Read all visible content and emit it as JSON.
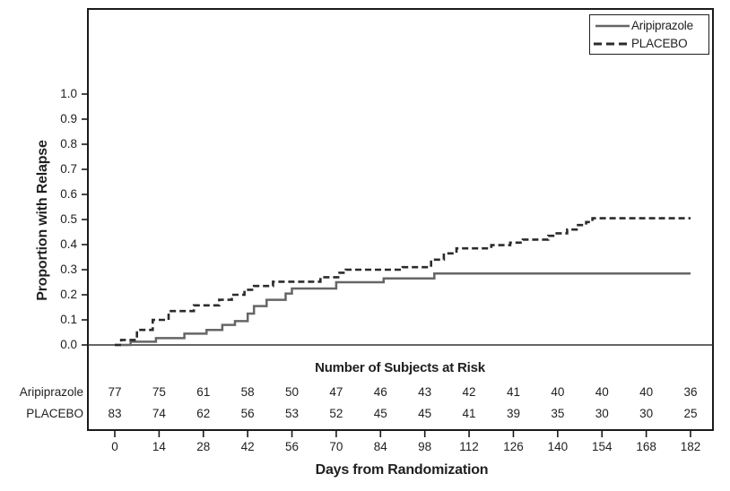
{
  "chart_data": {
    "type": "line",
    "subtype": "kaplan-meier-step",
    "title": "",
    "xlabel": "Days from Randomization",
    "ylabel": "Proportion with Relapse",
    "xlim": [
      0,
      182
    ],
    "ylim": [
      0.0,
      1.0
    ],
    "x_ticks": [
      "0",
      "14",
      "28",
      "42",
      "56",
      "70",
      "84",
      "98",
      "112",
      "126",
      "140",
      "154",
      "168",
      "182"
    ],
    "y_ticks": [
      "0.0",
      "0.1",
      "0.2",
      "0.3",
      "0.4",
      "0.5",
      "0.6",
      "0.7",
      "0.8",
      "0.9",
      "1.0"
    ],
    "grid": false,
    "legend_position": "top-right",
    "series": [
      {
        "name": "Aripiprazole",
        "style": "solid",
        "color": "#666666",
        "points": [
          [
            0,
            0
          ],
          [
            5,
            0.013
          ],
          [
            13,
            0.027
          ],
          [
            22,
            0.045
          ],
          [
            29,
            0.06
          ],
          [
            34,
            0.08
          ],
          [
            38,
            0.095
          ],
          [
            42,
            0.125
          ],
          [
            44,
            0.155
          ],
          [
            48,
            0.18
          ],
          [
            54,
            0.205
          ],
          [
            56,
            0.225
          ],
          [
            70,
            0.25
          ],
          [
            85,
            0.265
          ],
          [
            101,
            0.285
          ],
          [
            182,
            0.285
          ]
        ]
      },
      {
        "name": "PLACEBO",
        "style": "dashed",
        "color": "#2b2b2b",
        "points": [
          [
            0,
            0
          ],
          [
            2,
            0.02
          ],
          [
            7,
            0.06
          ],
          [
            12,
            0.1
          ],
          [
            17,
            0.135
          ],
          [
            25,
            0.158
          ],
          [
            33,
            0.18
          ],
          [
            37,
            0.2
          ],
          [
            41,
            0.22
          ],
          [
            44,
            0.235
          ],
          [
            50,
            0.252
          ],
          [
            65,
            0.27
          ],
          [
            71,
            0.288
          ],
          [
            73,
            0.3
          ],
          [
            91,
            0.31
          ],
          [
            100,
            0.34
          ],
          [
            104,
            0.365
          ],
          [
            108,
            0.385
          ],
          [
            119,
            0.398
          ],
          [
            125,
            0.408
          ],
          [
            129,
            0.42
          ],
          [
            137,
            0.435
          ],
          [
            139,
            0.445
          ],
          [
            143,
            0.46
          ],
          [
            146,
            0.478
          ],
          [
            149,
            0.49
          ],
          [
            151,
            0.505
          ],
          [
            182,
            0.505
          ]
        ]
      }
    ]
  },
  "legend": {
    "items": [
      {
        "label": "Aripiprazole",
        "style": "solid"
      },
      {
        "label": "PLACEBO",
        "style": "dashed"
      }
    ]
  },
  "risk_table": {
    "title": "Number of Subjects at Risk",
    "days": [
      "0",
      "14",
      "28",
      "42",
      "56",
      "70",
      "84",
      "98",
      "112",
      "126",
      "140",
      "154",
      "168",
      "182"
    ],
    "rows": [
      {
        "label": "Aripiprazole",
        "values": [
          "77",
          "75",
          "61",
          "58",
          "50",
          "47",
          "46",
          "43",
          "42",
          "41",
          "40",
          "40",
          "40",
          "36"
        ]
      },
      {
        "label": "PLACEBO",
        "values": [
          "83",
          "74",
          "62",
          "56",
          "53",
          "52",
          "45",
          "45",
          "41",
          "39",
          "35",
          "30",
          "30",
          "25"
        ]
      }
    ]
  },
  "colors": {
    "frame": "#1a1a1a",
    "text": "#1f1f1f",
    "solid_series": "#666666",
    "dashed_series": "#2b2b2b"
  }
}
